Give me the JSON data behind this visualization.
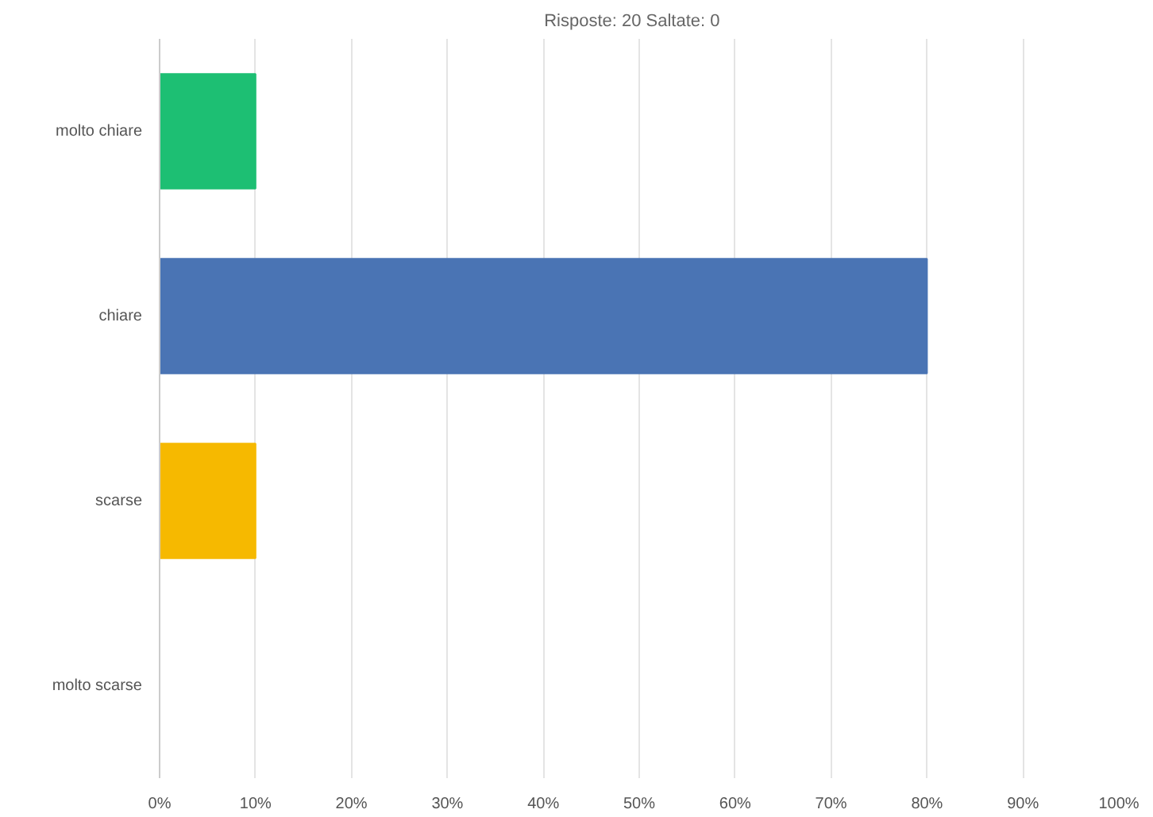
{
  "chart_data": {
    "type": "bar",
    "orientation": "horizontal",
    "title": "Risposte: 20    Saltate: 0",
    "categories": [
      "molto chiare",
      "chiare",
      "scarse",
      "molto scarse"
    ],
    "values": [
      10,
      80,
      10,
      0
    ],
    "colors": [
      "#1dbf73",
      "#4a74b4",
      "#f6b900",
      "#e8733a"
    ],
    "xlim": [
      0,
      100
    ],
    "xticks": [
      {
        "value": 0,
        "label": "0%"
      },
      {
        "value": 10,
        "label": "10%"
      },
      {
        "value": 20,
        "label": "20%"
      },
      {
        "value": 30,
        "label": "30%"
      },
      {
        "value": 40,
        "label": "40%"
      },
      {
        "value": 50,
        "label": "50%"
      },
      {
        "value": 60,
        "label": "60%"
      },
      {
        "value": 70,
        "label": "70%"
      },
      {
        "value": 80,
        "label": "80%"
      },
      {
        "value": 90,
        "label": "90%"
      },
      {
        "value": 100,
        "label": "100%"
      }
    ],
    "grid": "x"
  }
}
